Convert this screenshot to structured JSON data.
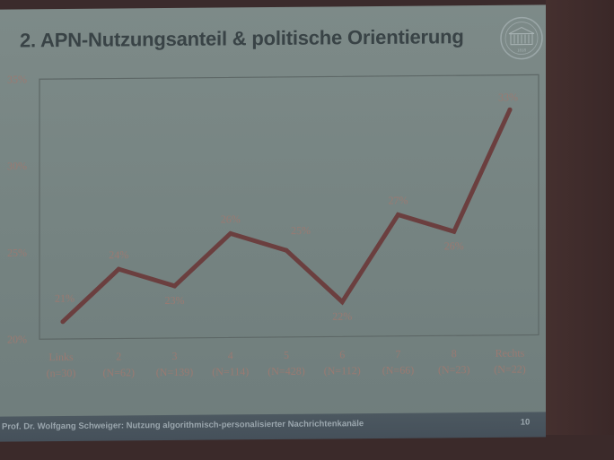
{
  "slide": {
    "title": "2. APN-Nutzungsanteil & politische Orientierung",
    "footer": "Prof. Dr. Wolfgang Schweiger: Nutzung algorithmisch-personalisierter Nachrichtenkanäle",
    "page_number": "10",
    "logo_icon": "university-seal-icon",
    "logo_year": "1818"
  },
  "chart_data": {
    "type": "line",
    "title": "",
    "xlabel": "",
    "ylabel": "",
    "categories": [
      "Links",
      "2",
      "3",
      "4",
      "5",
      "6",
      "7",
      "8",
      "Rechts"
    ],
    "category_counts": [
      "(n=30)",
      "(N=62)",
      "(N=139)",
      "(N=114)",
      "(N=428)",
      "(N=112)",
      "(N=66)",
      "(N=23)",
      "(N=22)"
    ],
    "values": [
      21,
      24,
      23,
      26,
      25,
      22,
      27,
      26,
      33
    ],
    "data_labels": [
      "21%",
      "24%",
      "23%",
      "26%",
      "25%",
      "22%",
      "27%",
      "26%",
      "33%"
    ],
    "y_ticks": [
      "20%",
      "25%",
      "30%",
      "35%"
    ],
    "ylim": [
      20,
      35
    ],
    "grid": false,
    "legend": "none",
    "line_color": "#6b3f3f",
    "label_color": "#9a7a72"
  }
}
